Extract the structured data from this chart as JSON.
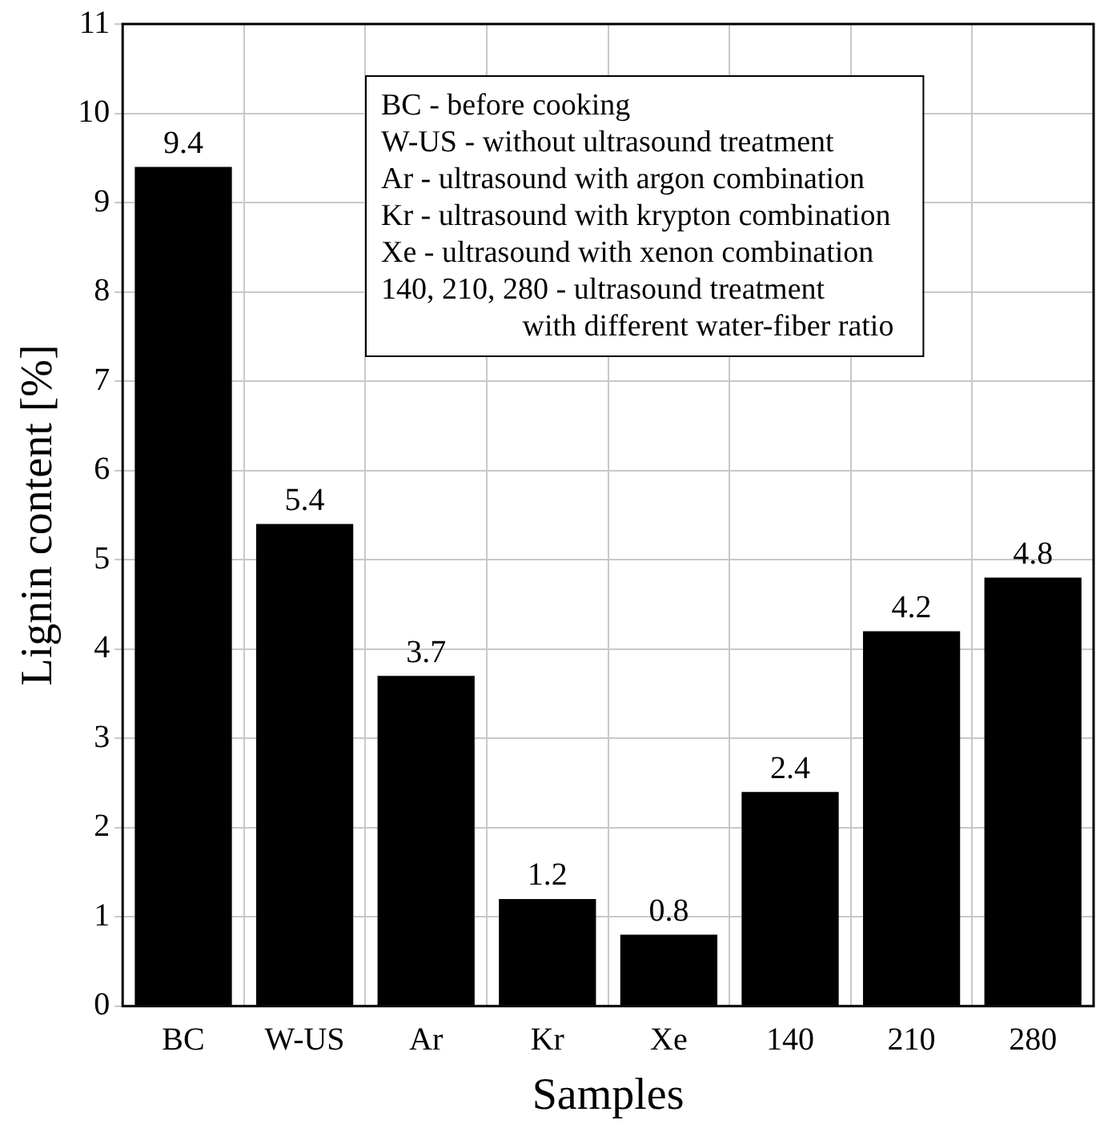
{
  "chart_data": {
    "type": "bar",
    "xlabel": "Samples",
    "ylabel": "Lignin content [%]",
    "categories": [
      "BC",
      "W-US",
      "Ar",
      "Kr",
      "Xe",
      "140",
      "210",
      "280"
    ],
    "values": [
      9.4,
      5.4,
      3.7,
      1.2,
      0.8,
      2.4,
      4.2,
      4.8
    ],
    "color": "#000000",
    "ylim": [
      0,
      11
    ],
    "yticks": [
      0,
      1,
      2,
      3,
      4,
      5,
      6,
      7,
      8,
      9,
      10,
      11
    ],
    "grid": true,
    "data_labels": true,
    "annotations": [
      "BC - before cooking",
      "W-US - without ultrasound treatment",
      "Ar - ultrasound with argon combination",
      "Kr - ultrasound with krypton combination",
      "Xe - ultrasound with xenon combination",
      "140, 210, 280 - ultrasound treatment\nwith different water-fiber ratio"
    ]
  }
}
